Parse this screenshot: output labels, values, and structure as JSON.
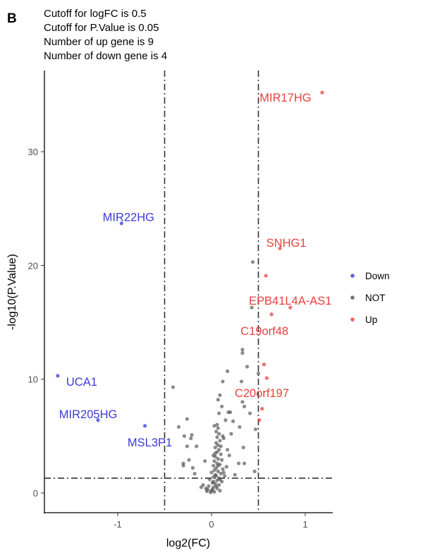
{
  "panel_label": "B",
  "chart_data": {
    "type": "scatter",
    "title_lines": [
      "Cutoff for logFC is 0.5",
      "Cutoff for P.Value is 0.05",
      "Number of up gene is 9",
      "Number of down gene is 4"
    ],
    "xlabel": "log2(FC)",
    "ylabel": "-log10(P.Value)",
    "xlim": [
      -1.78,
      1.28
    ],
    "ylim": [
      -1.73,
      37.1
    ],
    "xticks": [
      -1,
      0,
      1
    ],
    "yticks": [
      0,
      10,
      20,
      30
    ],
    "cutoff_lines": {
      "x": [
        -0.5,
        0.5
      ],
      "y": 1.3
    },
    "legend": {
      "placement": "right",
      "entries": [
        {
          "name": "Down",
          "color": "#3a3ad6"
        },
        {
          "name": "NOT",
          "color": "#4d4d4d"
        },
        {
          "name": "Up",
          "color": "#e8403c"
        }
      ]
    },
    "labeled_points": [
      {
        "label": "MIR17HG",
        "x": 1.18,
        "y": 35.2,
        "group": "Up"
      },
      {
        "label": "SNHG1",
        "x": 0.73,
        "y": 21.5,
        "group": "Up"
      },
      {
        "label": "EPB41L4A-AS1",
        "x": 0.84,
        "y": 16.3,
        "group": "Up"
      },
      {
        "label": "C19orf48",
        "x": 0.64,
        "y": 15.7,
        "group": "Up"
      },
      {
        "label": "C20orf197",
        "x": 0.59,
        "y": 10.1,
        "group": "Up"
      },
      {
        "label": "MIR22HG",
        "x": -0.96,
        "y": 23.7,
        "group": "Down"
      },
      {
        "label": "UCA1",
        "x": -1.64,
        "y": 10.3,
        "group": "Down"
      },
      {
        "label": "MIR205HG",
        "x": -1.21,
        "y": 6.4,
        "group": "Down"
      },
      {
        "label": "MSL3P1",
        "x": -0.71,
        "y": 5.9,
        "group": "Down"
      }
    ],
    "up_points": [
      [
        0.58,
        19.1
      ],
      [
        0.56,
        11.3
      ],
      [
        0.54,
        7.4
      ],
      [
        0.51,
        6.4
      ]
    ],
    "not_points": [
      [
        0.44,
        20.3
      ],
      [
        0.43,
        16.3
      ],
      [
        0.33,
        12.6
      ],
      [
        0.33,
        12.3
      ],
      [
        0.38,
        11.1
      ],
      [
        0.17,
        10.7
      ],
      [
        0.5,
        10.5
      ],
      [
        0.12,
        9.8
      ],
      [
        0.32,
        9.8
      ],
      [
        -0.41,
        9.3
      ],
      [
        0.09,
        8.6
      ],
      [
        0.07,
        8.2
      ],
      [
        0.33,
        8.0
      ],
      [
        0.35,
        7.6
      ],
      [
        0.18,
        7.1
      ],
      [
        0.2,
        7.1
      ],
      [
        0.41,
        7.0
      ],
      [
        -0.26,
        6.5
      ],
      [
        0.23,
        6.3
      ],
      [
        -0.35,
        5.8
      ],
      [
        0.3,
        5.8
      ],
      [
        0.47,
        5.6
      ],
      [
        -0.29,
        5.0
      ],
      [
        -0.21,
        5.1
      ],
      [
        -0.22,
        4.8
      ],
      [
        0.21,
        5.2
      ],
      [
        0.13,
        4.8
      ],
      [
        -0.26,
        4.1
      ],
      [
        -0.16,
        4.1
      ],
      [
        0.34,
        4.0
      ],
      [
        0.17,
        3.8
      ],
      [
        0.19,
        3.3
      ],
      [
        -0.07,
        2.8
      ],
      [
        -0.24,
        2.9
      ],
      [
        -0.3,
        2.6
      ],
      [
        -0.3,
        2.4
      ],
      [
        -0.2,
        2.2
      ],
      [
        0.29,
        2.6
      ],
      [
        0.35,
        2.6
      ],
      [
        0.46,
        1.9
      ],
      [
        -0.18,
        1.7
      ],
      [
        0.25,
        1.6
      ],
      [
        -0.09,
        0.7
      ],
      [
        -0.11,
        0.5
      ],
      [
        -0.06,
        0.4
      ],
      [
        0.06,
        6.0
      ],
      [
        0.07,
        5.7
      ],
      [
        0.05,
        5.4
      ],
      [
        0.08,
        5.2
      ],
      [
        0.06,
        4.9
      ],
      [
        0.09,
        4.6
      ],
      [
        0.05,
        4.4
      ],
      [
        0.07,
        4.2
      ],
      [
        0.04,
        4.0
      ],
      [
        0.08,
        3.8
      ],
      [
        0.06,
        3.6
      ],
      [
        0.1,
        3.4
      ],
      [
        0.04,
        3.2
      ],
      [
        0.07,
        3.0
      ],
      [
        0.11,
        2.9
      ],
      [
        0.03,
        2.8
      ],
      [
        0.06,
        2.6
      ],
      [
        0.09,
        2.5
      ],
      [
        0.02,
        2.4
      ],
      [
        0.05,
        2.2
      ],
      [
        0.12,
        2.1
      ],
      [
        0.03,
        2.0
      ],
      [
        0.07,
        1.9
      ],
      [
        0.0,
        1.8
      ],
      [
        0.1,
        1.7
      ],
      [
        0.04,
        1.6
      ],
      [
        0.14,
        1.5
      ],
      [
        0.02,
        1.4
      ],
      [
        0.08,
        1.3
      ],
      [
        -0.02,
        1.2
      ],
      [
        0.06,
        1.1
      ],
      [
        0.11,
        1.0
      ],
      [
        0.01,
        0.9
      ],
      [
        0.04,
        0.8
      ],
      [
        0.08,
        0.7
      ],
      [
        -0.03,
        0.6
      ],
      [
        0.02,
        0.5
      ],
      [
        0.06,
        0.4
      ],
      [
        -0.04,
        0.3
      ],
      [
        0.0,
        0.2
      ],
      [
        0.03,
        0.1
      ],
      [
        -0.01,
        0.05
      ],
      [
        0.01,
        0.3
      ],
      [
        -0.05,
        0.15
      ],
      [
        0.05,
        0.6
      ],
      [
        0.09,
        1.2
      ],
      [
        0.13,
        1.8
      ],
      [
        0.16,
        2.3
      ],
      [
        0.02,
        3.3
      ],
      [
        0.1,
        4.1
      ],
      [
        0.12,
        5.0
      ],
      [
        0.03,
        5.9
      ],
      [
        0.15,
        6.4
      ],
      [
        0.08,
        7.0
      ],
      [
        0.11,
        7.6
      ],
      [
        0.02,
        1.0
      ],
      [
        0.05,
        1.5
      ],
      [
        0.07,
        2.4
      ],
      [
        0.04,
        3.5
      ],
      [
        0.09,
        0.2
      ]
    ]
  }
}
